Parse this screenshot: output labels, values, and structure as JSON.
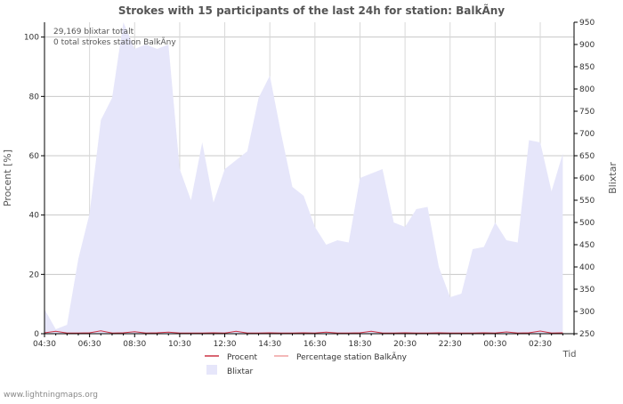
{
  "chart_data": {
    "type": "area",
    "title": "Strokes with 15 participants of the last 24h for station: BalkÃ­ny",
    "ylabel_left": "Procent   [%]",
    "ylabel_right": "Blixtar",
    "xlabel": "Tid",
    "left_ylim": [
      0,
      105
    ],
    "right_ylim": [
      250,
      950
    ],
    "left_yticks": [
      0,
      20,
      40,
      60,
      80,
      100
    ],
    "right_yticks": [
      250,
      300,
      350,
      400,
      450,
      500,
      550,
      600,
      650,
      700,
      750,
      800,
      850,
      900,
      950
    ],
    "xlim": [
      0,
      47
    ],
    "x_ticks": [
      {
        "x": 0,
        "label": "04:30"
      },
      {
        "x": 4,
        "label": "06:30"
      },
      {
        "x": 8,
        "label": "08:30"
      },
      {
        "x": 12,
        "label": "10:30"
      },
      {
        "x": 16,
        "label": "12:30"
      },
      {
        "x": 20,
        "label": "14:30"
      },
      {
        "x": 24,
        "label": "16:30"
      },
      {
        "x": 28,
        "label": "18:30"
      },
      {
        "x": 32,
        "label": "20:30"
      },
      {
        "x": 36,
        "label": "22:30"
      },
      {
        "x": 40,
        "label": "00:30"
      },
      {
        "x": 44,
        "label": "02:30"
      }
    ],
    "annotations": [
      "29,169 blixtar totalt",
      "0 total strokes station BalkÃ­ny"
    ],
    "series": [
      {
        "name": "Blixtar",
        "axis": "right",
        "style": "area",
        "color": "#e6e6fa",
        "values": [
          305,
          260,
          270,
          418,
          520,
          730,
          780,
          950,
          890,
          900,
          890,
          900,
          620,
          550,
          680,
          545,
          620,
          640,
          660,
          780,
          830,
          700,
          580,
          560,
          490,
          450,
          460,
          455,
          600,
          610,
          620,
          500,
          490,
          530,
          535,
          400,
          332,
          340,
          440,
          445,
          500,
          460,
          455,
          685,
          680,
          570,
          655
        ]
      },
      {
        "name": "Procent",
        "axis": "left",
        "style": "line",
        "color": "#cc3344",
        "values": [
          0.3,
          0.8,
          0.2,
          0.2,
          0.3,
          1.0,
          0.2,
          0.3,
          0.7,
          0.2,
          0.3,
          0.5,
          0.2,
          0.2,
          0.2,
          0.3,
          0.2,
          0.8,
          0.2,
          0.2,
          0.3,
          0.2,
          0.2,
          0.3,
          0.2,
          0.5,
          0.2,
          0.2,
          0.3,
          0.8,
          0.2,
          0.2,
          0.3,
          0.2,
          0.2,
          0.3,
          0.2,
          0.2,
          0.2,
          0.3,
          0.2,
          0.6,
          0.2,
          0.3,
          0.9,
          0.2,
          0.3
        ]
      },
      {
        "name": "Percentage station BalkÃ­ny",
        "axis": "left",
        "style": "line",
        "color": "#f0a0a0",
        "values": [
          0,
          0,
          0,
          0,
          0,
          0,
          0,
          0,
          0,
          0,
          0,
          0,
          0,
          0,
          0,
          0,
          0,
          0,
          0,
          0,
          0,
          0,
          0,
          0,
          0,
          0,
          0,
          0,
          0,
          0,
          0,
          0,
          0,
          0,
          0,
          0,
          0,
          0,
          0,
          0,
          0,
          0,
          0,
          0,
          0,
          0,
          0
        ]
      }
    ],
    "legend": [
      {
        "label": "Procent",
        "color": "#cc3344",
        "kind": "line"
      },
      {
        "label": "Percentage station BalkÃ­ny",
        "color": "#f0a0a0",
        "kind": "line"
      },
      {
        "label": "Blixtar",
        "color": "#e6e6fa",
        "kind": "box"
      }
    ]
  },
  "footer": {
    "credit": "www.lightningmaps.org"
  }
}
